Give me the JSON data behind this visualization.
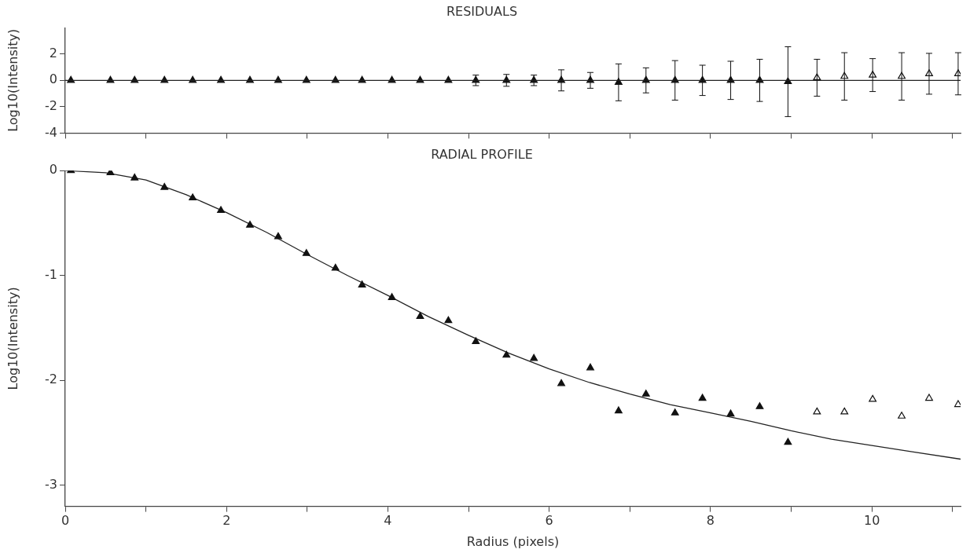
{
  "chart_data": [
    {
      "type": "scatter",
      "title": "RESIDUALS",
      "ylabel": "Log10(Intensity)",
      "xlim": [
        0,
        11.1
      ],
      "ylim": [
        -4,
        4
      ],
      "xticks": [
        0,
        {
          "value": 1,
          "label": null
        },
        2,
        {
          "value": 3,
          "label": null
        },
        4,
        {
          "value": 5,
          "label": null
        },
        6,
        {
          "value": 7,
          "label": null
        },
        8,
        {
          "value": 9,
          "label": null
        },
        10,
        {
          "value": 11,
          "label": null
        }
      ],
      "yticks": [
        -4,
        -2,
        0,
        2
      ],
      "tick_labels": "y",
      "grid": false,
      "legend": false,
      "marker": "triangle",
      "ref_lines": [
        {
          "axis": "y",
          "value": 0,
          "label": null,
          "color": "#222222"
        }
      ],
      "series": [
        {
          "color": "#111111",
          "x": [
            0.07,
            0.56,
            0.86,
            1.23,
            1.58,
            1.93,
            2.29,
            2.64,
            2.99,
            3.35,
            3.68,
            4.05,
            4.4,
            4.75,
            5.09,
            5.47,
            5.81,
            6.15,
            6.51,
            6.86,
            7.2,
            7.56,
            7.9,
            8.25,
            8.61,
            8.96
          ],
          "values": [
            0,
            0,
            0,
            0,
            0,
            0,
            0,
            0,
            0,
            0,
            0,
            0,
            0,
            0,
            0,
            0,
            0,
            0,
            0,
            -0.15,
            0,
            0,
            0,
            0,
            0,
            -0.1
          ],
          "errors": [
            null,
            null,
            null,
            null,
            null,
            null,
            null,
            null,
            null,
            null,
            null,
            null,
            null,
            null,
            0.4,
            0.45,
            0.4,
            0.8,
            0.6,
            1.4,
            0.95,
            1.5,
            1.15,
            1.45,
            1.6,
            2.65
          ]
        },
        {
          "color": "#111111",
          "x": [
            9.32,
            9.66,
            10.01,
            10.37,
            10.71,
            11.07
          ],
          "values": [
            0.2,
            0.3,
            0.4,
            0.3,
            0.5,
            0.5
          ],
          "errors": [
            1.4,
            1.8,
            1.25,
            1.8,
            1.55,
            1.6
          ]
        }
      ]
    },
    {
      "type": "scatter",
      "title": "RADIAL PROFILE",
      "xlabel": "Radius (pixels)",
      "ylabel": "Log10(Intensity)",
      "xlim": [
        0,
        11.1
      ],
      "ylim": [
        -3.2,
        0
      ],
      "xticks": [
        0,
        {
          "value": 1,
          "label": null
        },
        2,
        {
          "value": 3,
          "label": null
        },
        4,
        {
          "value": 5,
          "label": null
        },
        6,
        {
          "value": 7,
          "label": null
        },
        8,
        {
          "value": 9,
          "label": null
        },
        10,
        {
          "value": 11,
          "label": null
        }
      ],
      "yticks": [
        0,
        -1,
        -2,
        -3
      ],
      "grid": false,
      "legend": false,
      "marker": "triangle",
      "series": [
        {
          "color": "#111111",
          "x": [
            0.07,
            0.56,
            0.86,
            1.23,
            1.58,
            1.93,
            2.29,
            2.64,
            2.99,
            3.35,
            3.68,
            4.05,
            4.4,
            4.75,
            5.09,
            5.47,
            5.81,
            6.15,
            6.51,
            6.86,
            7.2,
            7.56,
            7.9,
            8.25,
            8.61,
            8.96
          ],
          "values": [
            0,
            -0.02,
            -0.07,
            -0.16,
            -0.26,
            -0.38,
            -0.52,
            -0.63,
            -0.79,
            -0.93,
            -1.09,
            -1.21,
            -1.39,
            -1.43,
            -1.63,
            -1.76,
            -1.79,
            -2.03,
            -1.88,
            -2.29,
            -2.13,
            -2.31,
            -2.17,
            -2.32,
            -2.25,
            -2.59
          ]
        },
        {
          "color": "#111111",
          "x": [
            9.32,
            9.66,
            10.01,
            10.37,
            10.71,
            11.07
          ],
          "values": [
            -2.3,
            -2.3,
            -2.18,
            -2.34,
            -2.17,
            -2.23
          ]
        },
        {
          "type": "line",
          "color": "#222222",
          "marker": "none",
          "x": [
            0,
            0.5,
            1,
            1.5,
            2,
            2.5,
            3,
            3.5,
            4,
            4.5,
            5,
            5.5,
            6,
            6.5,
            7,
            7.5,
            8,
            8.5,
            9,
            9.5,
            10,
            10.5,
            11.1
          ],
          "values": [
            0,
            -0.02,
            -0.09,
            -0.23,
            -0.4,
            -0.59,
            -0.8,
            -1.0,
            -1.19,
            -1.39,
            -1.57,
            -1.74,
            -1.89,
            -2.02,
            -2.13,
            -2.23,
            -2.31,
            -2.39,
            -2.48,
            -2.56,
            -2.62,
            -2.68,
            -2.75
          ]
        }
      ]
    }
  ]
}
